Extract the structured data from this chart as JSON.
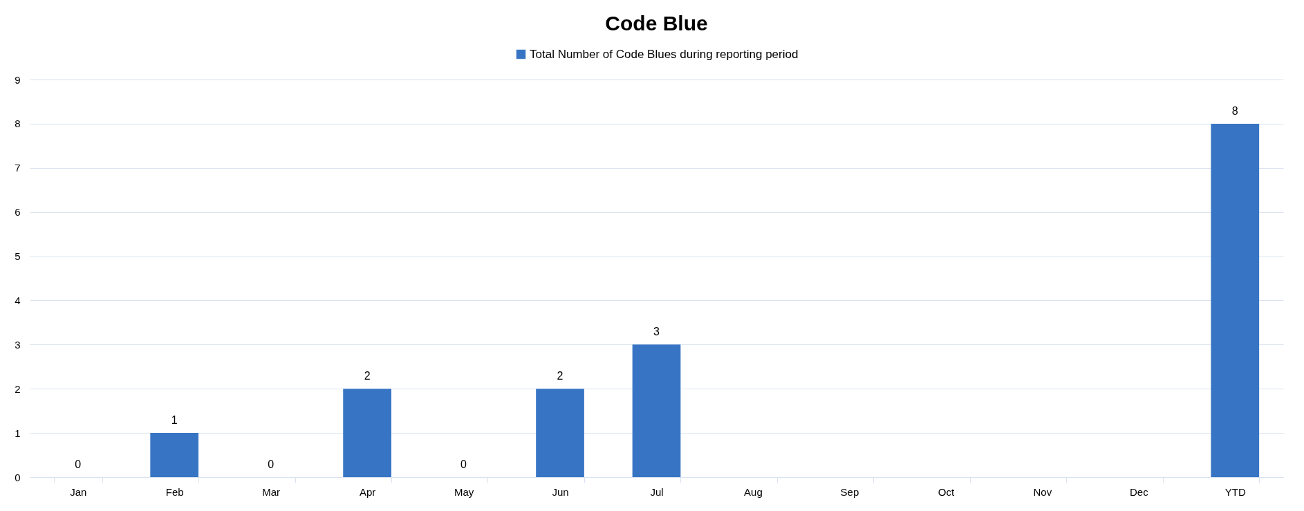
{
  "chart_data": {
    "type": "bar",
    "title": "Code Blue",
    "categories": [
      "Jan",
      "Feb",
      "Mar",
      "Apr",
      "May",
      "Jun",
      "Jul",
      "Aug",
      "Sep",
      "Oct",
      "Nov",
      "Dec",
      "YTD"
    ],
    "series": [
      {
        "name": "Total Number of Code Blues during reporting period",
        "color": "#3775c4",
        "values": [
          0,
          1,
          0,
          2,
          0,
          2,
          3,
          null,
          null,
          null,
          null,
          null,
          8
        ]
      }
    ],
    "ylim": [
      0,
      9
    ],
    "yticks": [
      0,
      1,
      2,
      3,
      4,
      5,
      6,
      7,
      8,
      9
    ],
    "grid": "y",
    "legend": "top",
    "data_labels": true
  }
}
